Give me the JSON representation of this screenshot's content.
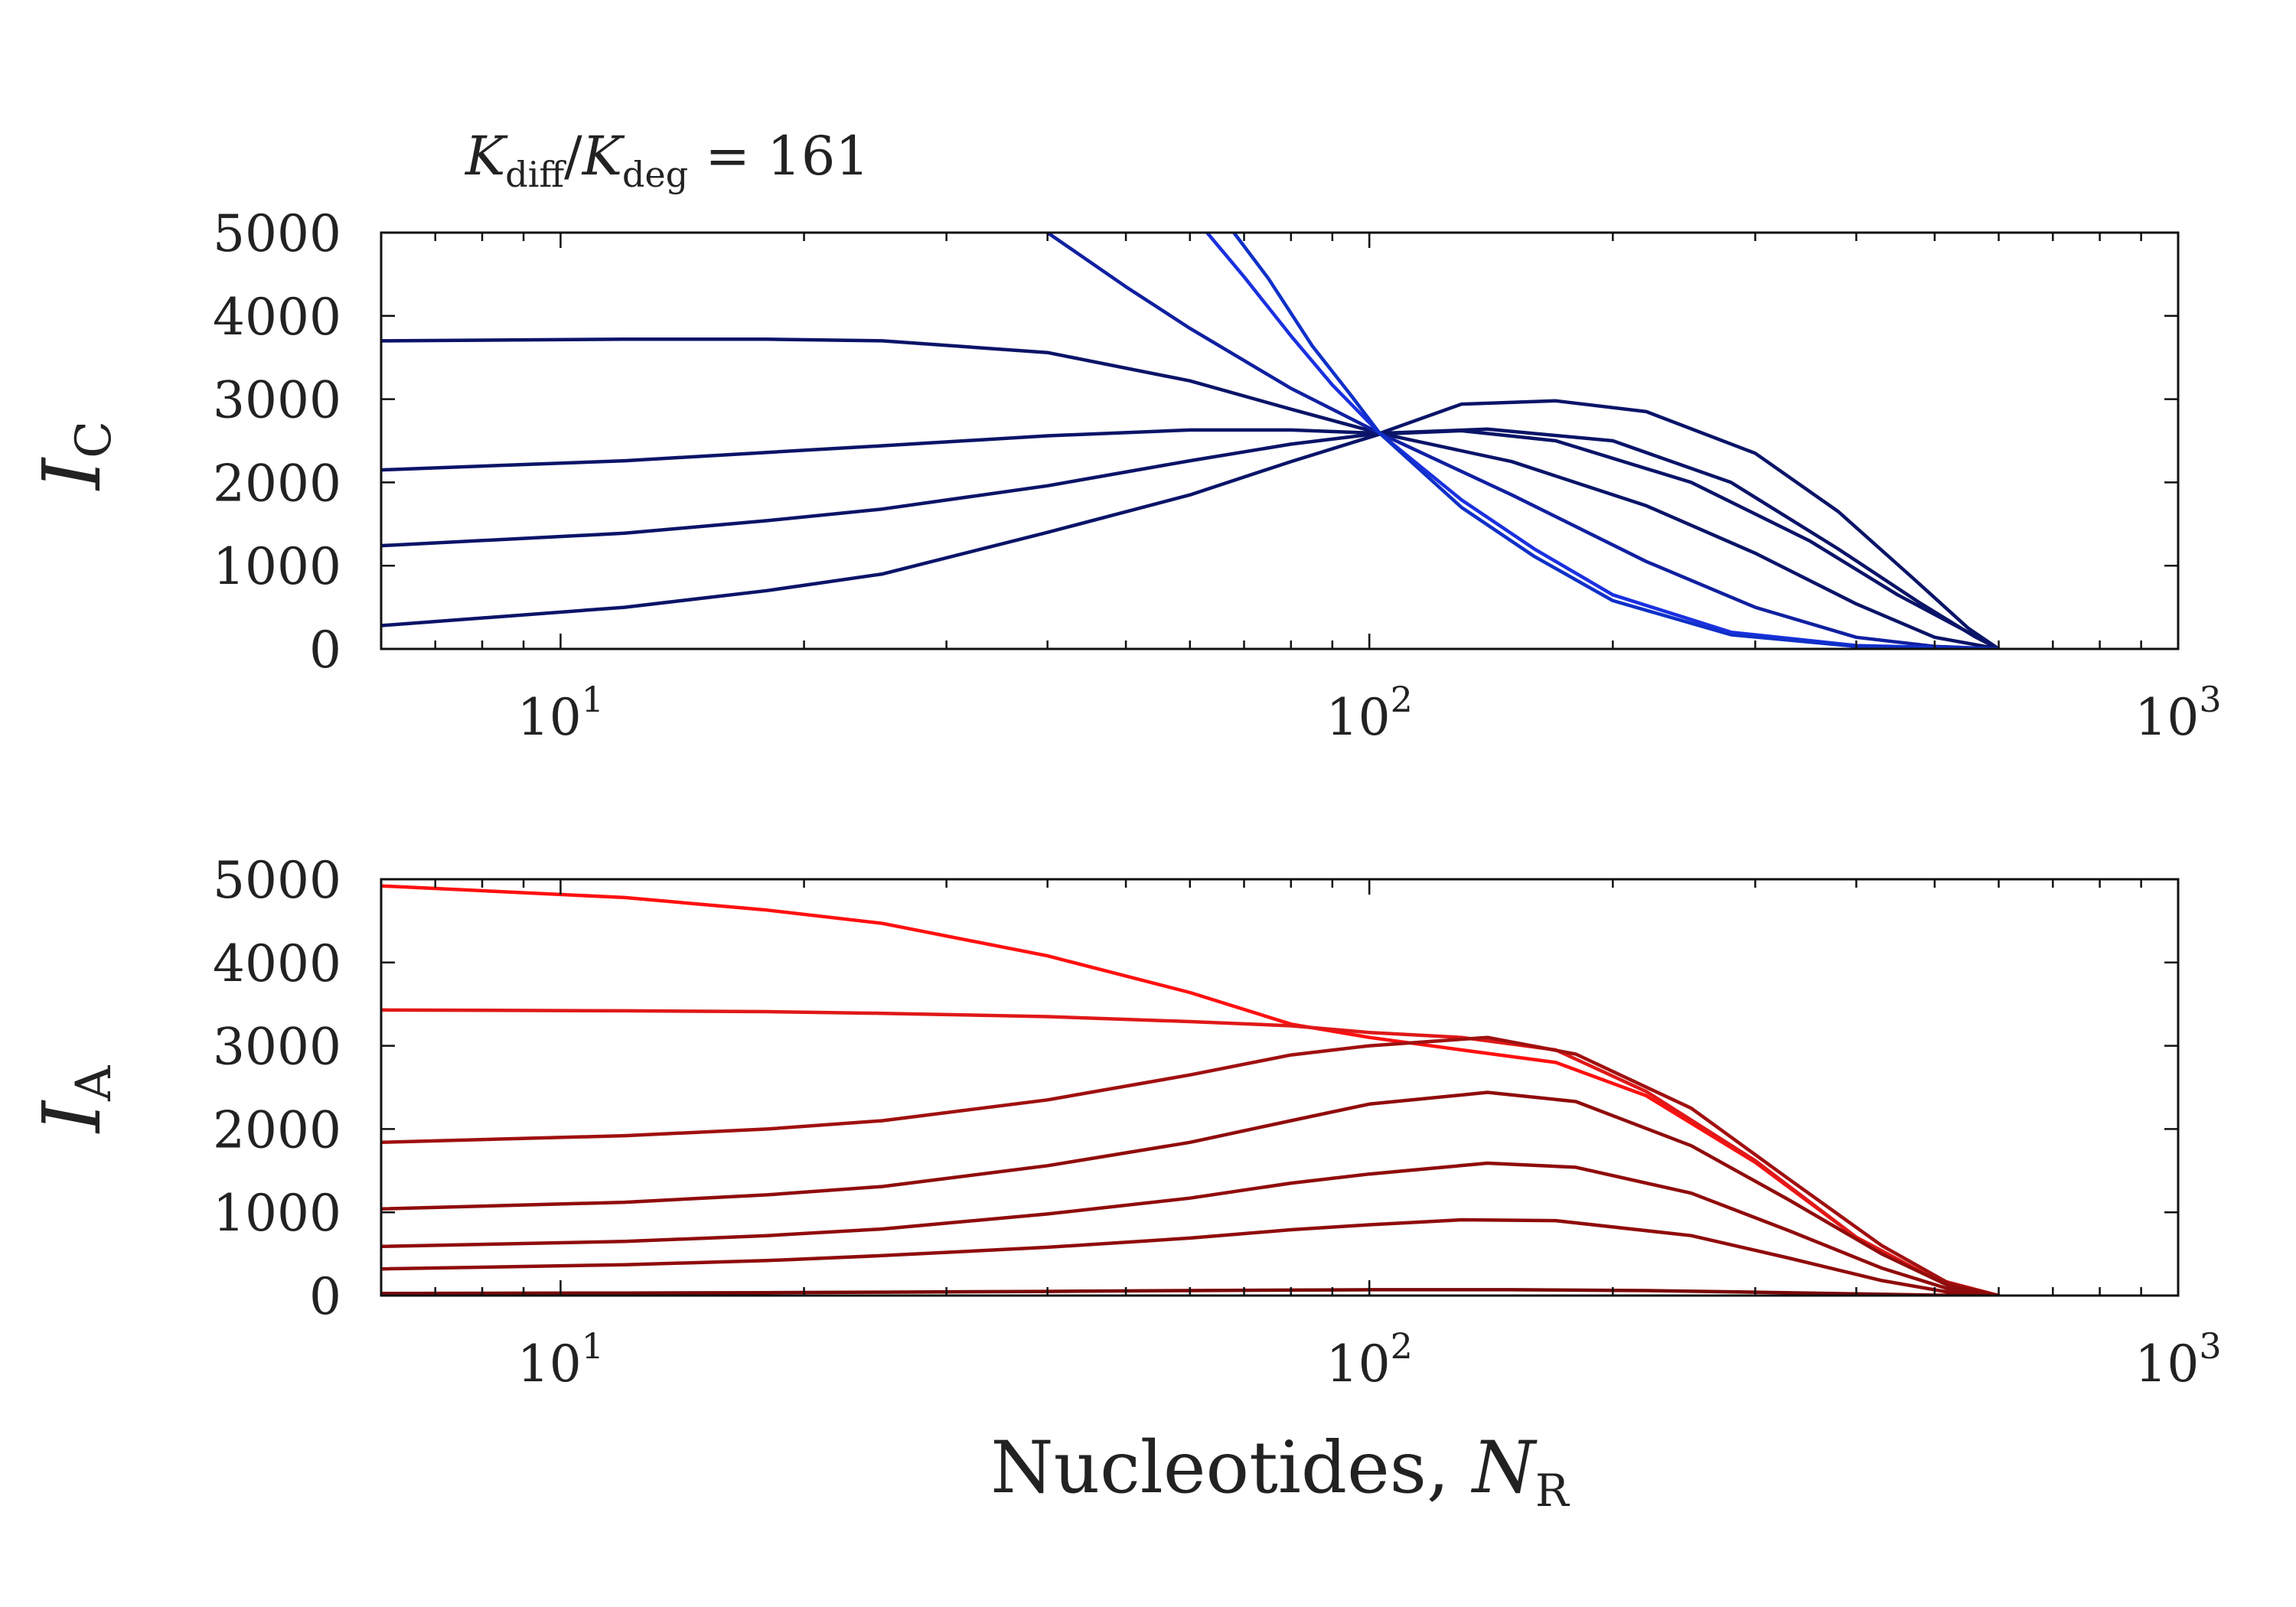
{
  "title": {
    "k1": "K",
    "sub1": "diff",
    "slash": "/",
    "k2": "K",
    "sub2": "deg",
    "rest": " = 161"
  },
  "xlabel": {
    "text": "Nucleotides, ",
    "var": "N",
    "sub": "R"
  },
  "chart_data": [
    {
      "type": "line",
      "panel": "top",
      "ylabel": {
        "main": "I",
        "sub": "C"
      },
      "xscale": "log",
      "xlim": [
        6,
        1000
      ],
      "ylim": [
        0,
        5000
      ],
      "xticks": [
        {
          "base": "10",
          "exp": "1",
          "value": 10
        },
        {
          "base": "10",
          "exp": "2",
          "value": 100
        },
        {
          "base": "10",
          "exp": "3",
          "value": 1000
        }
      ],
      "yticks": [
        "0",
        "1000",
        "2000",
        "3000",
        "4000",
        "5000"
      ],
      "grid": false,
      "series": [
        {
          "color": "#0a1468",
          "points": [
            [
              6,
              280
            ],
            [
              12,
              500
            ],
            [
              18,
              700
            ],
            [
              25,
              900
            ],
            [
              40,
              1400
            ],
            [
              60,
              1850
            ],
            [
              80,
              2250
            ],
            [
              103,
              2580
            ],
            [
              130,
              2620
            ],
            [
              170,
              2500
            ],
            [
              250,
              2000
            ],
            [
              350,
              1300
            ],
            [
              450,
              650
            ],
            [
              550,
              200
            ],
            [
              600,
              0
            ]
          ]
        },
        {
          "color": "#0a1468",
          "points": [
            [
              6,
              1240
            ],
            [
              12,
              1390
            ],
            [
              18,
              1540
            ],
            [
              25,
              1680
            ],
            [
              40,
              1960
            ],
            [
              60,
              2260
            ],
            [
              80,
              2460
            ],
            [
              103,
              2590
            ],
            [
              140,
              2640
            ],
            [
              200,
              2500
            ],
            [
              280,
              2000
            ],
            [
              380,
              1200
            ],
            [
              480,
              550
            ],
            [
              560,
              150
            ],
            [
              600,
              0
            ]
          ]
        },
        {
          "color": "#0a1468",
          "points": [
            [
              6,
              2150
            ],
            [
              12,
              2260
            ],
            [
              18,
              2360
            ],
            [
              25,
              2440
            ],
            [
              40,
              2560
            ],
            [
              60,
              2630
            ],
            [
              80,
              2630
            ],
            [
              103,
              2590
            ],
            [
              130,
              2940
            ],
            [
              170,
              2980
            ],
            [
              220,
              2850
            ],
            [
              300,
              2350
            ],
            [
              380,
              1650
            ],
            [
              470,
              850
            ],
            [
              550,
              250
            ],
            [
              600,
              0
            ]
          ]
        },
        {
          "color": "#0a1468",
          "points": [
            [
              6,
              3700
            ],
            [
              12,
              3720
            ],
            [
              18,
              3720
            ],
            [
              25,
              3700
            ],
            [
              40,
              3560
            ],
            [
              60,
              3220
            ],
            [
              80,
              2880
            ],
            [
              103,
              2590
            ],
            [
              150,
              2250
            ],
            [
              220,
              1720
            ],
            [
              300,
              1150
            ],
            [
              400,
              540
            ],
            [
              500,
              140
            ],
            [
              600,
              0
            ]
          ]
        },
        {
          "color": "#1020a0",
          "points": [
            [
              40,
              5000
            ],
            [
              50,
              4350
            ],
            [
              60,
              3850
            ],
            [
              80,
              3130
            ],
            [
              103,
              2590
            ],
            [
              150,
              1850
            ],
            [
              220,
              1050
            ],
            [
              300,
              500
            ],
            [
              400,
              140
            ],
            [
              500,
              30
            ],
            [
              600,
              0
            ]
          ]
        },
        {
          "color": "#1a30e0",
          "points": [
            [
              63,
              5000
            ],
            [
              70,
              4470
            ],
            [
              80,
              3760
            ],
            [
              90,
              3170
            ],
            [
              103,
              2590
            ],
            [
              130,
              1790
            ],
            [
              160,
              1200
            ],
            [
              200,
              650
            ],
            [
              280,
              200
            ],
            [
              400,
              40
            ],
            [
              600,
              0
            ]
          ]
        },
        {
          "color": "#1030c8",
          "points": [
            [
              68,
              5000
            ],
            [
              75,
              4450
            ],
            [
              85,
              3640
            ],
            [
              95,
              3040
            ],
            [
              103,
              2590
            ],
            [
              130,
              1700
            ],
            [
              160,
              1110
            ],
            [
              200,
              580
            ],
            [
              280,
              170
            ],
            [
              400,
              30
            ],
            [
              600,
              0
            ]
          ]
        }
      ]
    },
    {
      "type": "line",
      "panel": "bottom",
      "ylabel": {
        "main": "I",
        "sub": "A"
      },
      "xscale": "log",
      "xlim": [
        6,
        1000
      ],
      "ylim": [
        0,
        5000
      ],
      "xticks": [
        {
          "base": "10",
          "exp": "1",
          "value": 10
        },
        {
          "base": "10",
          "exp": "2",
          "value": 100
        },
        {
          "base": "10",
          "exp": "3",
          "value": 1000
        }
      ],
      "yticks": [
        "0",
        "1000",
        "2000",
        "3000",
        "4000",
        "5000"
      ],
      "grid": false,
      "series": [
        {
          "color": "#ff1010",
          "points": [
            [
              6,
              4920
            ],
            [
              12,
              4780
            ],
            [
              18,
              4630
            ],
            [
              25,
              4470
            ],
            [
              40,
              4080
            ],
            [
              60,
              3640
            ],
            [
              80,
              3260
            ],
            [
              100,
              3100
            ],
            [
              130,
              2950
            ],
            [
              170,
              2800
            ],
            [
              220,
              2400
            ],
            [
              300,
              1600
            ],
            [
              400,
              700
            ],
            [
              500,
              200
            ],
            [
              600,
              0
            ]
          ]
        },
        {
          "color": "#e01818",
          "points": [
            [
              6,
              3430
            ],
            [
              12,
              3420
            ],
            [
              18,
              3410
            ],
            [
              25,
              3390
            ],
            [
              40,
              3350
            ],
            [
              60,
              3290
            ],
            [
              80,
              3240
            ],
            [
              100,
              3160
            ],
            [
              130,
              3100
            ],
            [
              170,
              2950
            ],
            [
              220,
              2450
            ],
            [
              300,
              1620
            ],
            [
              400,
              700
            ],
            [
              500,
              200
            ],
            [
              600,
              0
            ]
          ]
        },
        {
          "color": "#a01010",
          "points": [
            [
              6,
              1840
            ],
            [
              12,
              1920
            ],
            [
              18,
              2000
            ],
            [
              25,
              2100
            ],
            [
              40,
              2350
            ],
            [
              60,
              2650
            ],
            [
              80,
              2890
            ],
            [
              100,
              3000
            ],
            [
              140,
              3100
            ],
            [
              180,
              2900
            ],
            [
              250,
              2250
            ],
            [
              330,
              1400
            ],
            [
              430,
              600
            ],
            [
              520,
              150
            ],
            [
              600,
              0
            ]
          ]
        },
        {
          "color": "#900c0c",
          "points": [
            [
              6,
              1040
            ],
            [
              12,
              1120
            ],
            [
              18,
              1210
            ],
            [
              25,
              1310
            ],
            [
              40,
              1560
            ],
            [
              60,
              1840
            ],
            [
              80,
              2100
            ],
            [
              100,
              2300
            ],
            [
              140,
              2440
            ],
            [
              180,
              2330
            ],
            [
              250,
              1800
            ],
            [
              330,
              1150
            ],
            [
              430,
              500
            ],
            [
              520,
              120
            ],
            [
              600,
              0
            ]
          ]
        },
        {
          "color": "#900c0c",
          "points": [
            [
              6,
              590
            ],
            [
              12,
              650
            ],
            [
              18,
              720
            ],
            [
              25,
              800
            ],
            [
              40,
              980
            ],
            [
              60,
              1170
            ],
            [
              80,
              1350
            ],
            [
              100,
              1460
            ],
            [
              140,
              1590
            ],
            [
              180,
              1540
            ],
            [
              250,
              1230
            ],
            [
              330,
              780
            ],
            [
              430,
              330
            ],
            [
              520,
              80
            ],
            [
              600,
              0
            ]
          ]
        },
        {
          "color": "#900c0c",
          "points": [
            [
              6,
              320
            ],
            [
              12,
              370
            ],
            [
              18,
              420
            ],
            [
              25,
              480
            ],
            [
              40,
              580
            ],
            [
              60,
              690
            ],
            [
              80,
              790
            ],
            [
              100,
              850
            ],
            [
              130,
              910
            ],
            [
              170,
              900
            ],
            [
              250,
              720
            ],
            [
              330,
              450
            ],
            [
              430,
              180
            ],
            [
              520,
              40
            ],
            [
              600,
              0
            ]
          ]
        },
        {
          "color": "#7a0808",
          "points": [
            [
              6,
              25
            ],
            [
              12,
              30
            ],
            [
              18,
              35
            ],
            [
              25,
              40
            ],
            [
              40,
              50
            ],
            [
              60,
              60
            ],
            [
              100,
              70
            ],
            [
              150,
              70
            ],
            [
              220,
              60
            ],
            [
              300,
              40
            ],
            [
              400,
              20
            ],
            [
              500,
              5
            ],
            [
              600,
              0
            ]
          ]
        }
      ]
    }
  ]
}
